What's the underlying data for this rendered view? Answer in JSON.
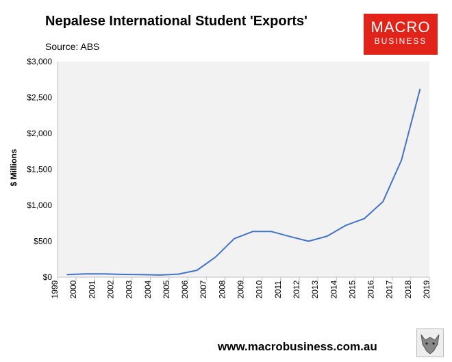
{
  "header": {
    "title": "Nepalese International Student 'Exports'",
    "source": "Source: ABS"
  },
  "logo": {
    "line1": "MACRO",
    "line2": "BUSINESS",
    "color": "#e2231a"
  },
  "footer": {
    "url": "www.macrobusiness.com.au",
    "wolf_icon": "wolf-logo-icon"
  },
  "chart_data": {
    "type": "line",
    "title": "Nepalese International Student 'Exports'",
    "xlabel": "",
    "ylabel": "$ Millions",
    "ylim": [
      0,
      3000
    ],
    "yticks": [
      "$0",
      "$500",
      "$1,000",
      "$1,500",
      "$2,000",
      "$2,500",
      "$3,000"
    ],
    "categories": [
      "1999",
      "2000",
      "2001",
      "2002",
      "2003",
      "2004",
      "2005",
      "2006",
      "2007",
      "2008",
      "2009",
      "2010",
      "2011",
      "2012",
      "2013",
      "2014",
      "2015",
      "2016",
      "2017",
      "2018",
      "2019"
    ],
    "series": [
      {
        "name": "",
        "color": "#4472c4",
        "x": [
          1999.5,
          2000.5,
          2001.5,
          2002.5,
          2003.5,
          2004.5,
          2005.5,
          2006.5,
          2007.5,
          2008.5,
          2009.5,
          2010.5,
          2011.5,
          2012.5,
          2013.5,
          2014.5,
          2015.5,
          2016.5,
          2017.5,
          2018.5
        ],
        "values": [
          35,
          45,
          45,
          38,
          35,
          30,
          42,
          95,
          280,
          535,
          635,
          635,
          565,
          500,
          570,
          720,
          815,
          1050,
          1630,
          2620
        ]
      }
    ],
    "grid": false,
    "background": "#f2f2f2"
  }
}
